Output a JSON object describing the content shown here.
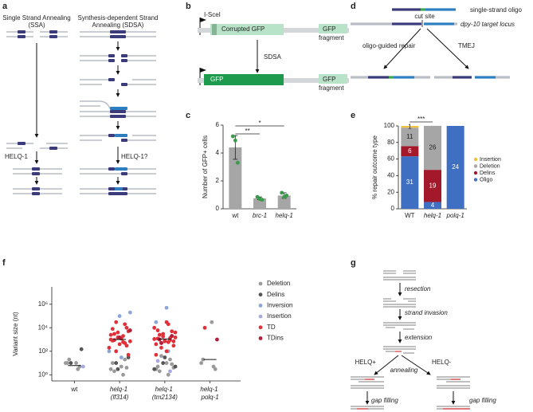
{
  "panel_a": {
    "letter": "a",
    "ssa_title": [
      "Single Strand Annealing",
      "(SSA)"
    ],
    "sdsa_title": [
      "Synthesis-dependent Strand",
      "Annealing (SDSA)"
    ],
    "ssa_step": "HELQ-1",
    "sdsa_step": "HELQ-1?"
  },
  "panel_b": {
    "letter": "b",
    "site": "I-SceI",
    "reporter": "Corrupted GFP",
    "fragment": [
      "GFP",
      "fragment"
    ],
    "arrow": "SDSA",
    "repaired": "GFP",
    "fragment_after": [
      "GFP",
      "fragment"
    ]
  },
  "panel_d": {
    "letter": "d",
    "oligo": "single-strand oligo",
    "locus": "dpy-10 target locus",
    "cut": "cut site",
    "left": "oligo-guided repair",
    "right": "TMEJ"
  },
  "panel_g": {
    "letter": "g",
    "steps": [
      "resection",
      "strand invasion",
      "extension"
    ],
    "left": "HELQ+",
    "right": "HELQ-",
    "annealing": "annealing",
    "fill_left": "gap filling",
    "fill_right": "gap filling"
  },
  "chart_data": [
    {
      "letter": "c",
      "type": "bar",
      "categories": [
        "wt",
        "brc-1",
        "helq-1"
      ],
      "values": [
        4.4,
        0.75,
        0.95
      ],
      "errors": [
        0.85,
        0.1,
        0.2
      ],
      "points": [
        [
          5.2,
          4.9,
          3.3
        ],
        [
          0.85,
          0.7,
          0.65
        ],
        [
          1.15,
          0.85,
          0.95
        ]
      ],
      "color": "#a6a6a6",
      "point_color": "#3a9a4c",
      "ylabel": "Number of GFP+ cells",
      "ylim": [
        0,
        6
      ],
      "yticks": [
        0,
        2,
        4,
        6
      ],
      "annotations": [
        "**",
        "*"
      ]
    },
    {
      "letter": "e",
      "type": "stacked_bar",
      "categories": [
        "WT",
        "helq-1",
        "polq-1"
      ],
      "series": [
        {
          "name": "Oligo",
          "color": "#3f6fc2",
          "values": [
            63.3,
            8.2,
            100
          ],
          "counts": [
            31,
            4,
            24
          ]
        },
        {
          "name": "Delins",
          "color": "#a3192b",
          "values": [
            12.2,
            38.8,
            0
          ],
          "counts": [
            6,
            19,
            null
          ]
        },
        {
          "name": "Deletion",
          "color": "#a6a6a6",
          "values": [
            22.4,
            53.1,
            0
          ],
          "counts": [
            11,
            26,
            null
          ]
        },
        {
          "name": "Insertion",
          "color": "#f2bf3a",
          "values": [
            2.0,
            0,
            0
          ],
          "counts": [
            1,
            null,
            null
          ]
        }
      ],
      "ylabel": "% repair outcome type",
      "ylim": [
        0,
        100
      ],
      "yticks": [
        0,
        20,
        40,
        60,
        80,
        100
      ],
      "annotations": [
        "***"
      ]
    },
    {
      "letter": "f",
      "type": "scatter",
      "log": true,
      "categories": [
        "wt",
        "helq-1 (lf314)",
        "helq-1 (tm2134)",
        "helq-1 polq-1"
      ],
      "ylabel": "Variant size (nt)",
      "ylim": [
        0.3,
        30000000
      ],
      "yticks": [
        {
          "value": 1,
          "label": "10⁰"
        },
        {
          "value": 100,
          "label": "10²"
        },
        {
          "value": 10000,
          "label": "10⁴"
        },
        {
          "value": 1000000,
          "label": "10⁶"
        }
      ],
      "medians": [
        6,
        1000,
        1100,
        20
      ],
      "series": [
        {
          "name": "Deletion",
          "color": "#9a9a9a",
          "x": [
            "wt",
            "wt",
            "wt",
            "wt",
            "wt",
            "wt",
            "helq-1 (lf314)",
            "helq-1 (lf314)",
            "helq-1 (lf314)",
            "helq-1 (lf314)",
            "helq-1 (lf314)",
            "helq-1 (lf314)",
            "helq-1 (lf314)",
            "helq-1 (tm2134)",
            "helq-1 (tm2134)",
            "helq-1 (tm2134)",
            "helq-1 (tm2134)",
            "helq-1 (tm2134)",
            "helq-1 (tm2134)",
            "helq-1 (tm2134)",
            "helq-1 (tm2134)",
            "helq-1 (tm2134)",
            "helq-1 polq-1",
            "helq-1 polq-1",
            "helq-1 polq-1",
            "helq-1 polq-1",
            "helq-1 polq-1"
          ],
          "values": [
            10,
            10,
            3,
            10,
            5,
            20,
            5,
            3,
            1,
            10,
            20,
            2,
            4,
            10,
            3,
            1,
            5,
            20,
            2,
            8,
            40,
            4,
            30000,
            10,
            5,
            20,
            3
          ]
        },
        {
          "name": "Delins",
          "color": "#555555",
          "x": [
            "wt",
            "wt",
            "helq-1 (lf314)",
            "helq-1 (lf314)",
            "helq-1 (lf314)",
            "helq-1 (tm2134)",
            "helq-1 (tm2134)",
            "helq-1 (tm2134)",
            "helq-1 (tm2134)"
          ],
          "values": [
            150,
            10,
            10,
            30,
            3,
            10,
            5,
            30,
            3
          ]
        },
        {
          "name": "Inversion",
          "color": "#8aa6d6",
          "x": [
            "helq-1 (lf314)",
            "helq-1 (lf314)",
            "helq-1 (lf314)",
            "helq-1 (lf314)",
            "helq-1 (tm2134)",
            "helq-1 (tm2134)",
            "helq-1 (tm2134)"
          ],
          "values": [
            200000,
            100000,
            100,
            30,
            500000,
            30000,
            100
          ]
        },
        {
          "name": "Insertion",
          "color": "#a9a9e0",
          "x": [
            "wt",
            "helq-1 (tm2134)",
            "helq-1 (tm2134)"
          ],
          "values": [
            5,
            15,
            2
          ]
        },
        {
          "name": "TD",
          "color": "#e0303a",
          "x": [
            "helq-1 (lf314)",
            "helq-1 (lf314)",
            "helq-1 (lf314)",
            "helq-1 (lf314)",
            "helq-1 (lf314)",
            "helq-1 (lf314)",
            "helq-1 (lf314)",
            "helq-1 (lf314)",
            "helq-1 (lf314)",
            "helq-1 (lf314)",
            "helq-1 (lf314)",
            "helq-1 (lf314)",
            "helq-1 (lf314)",
            "helq-1 (lf314)",
            "helq-1 (lf314)",
            "helq-1 (lf314)",
            "helq-1 (lf314)",
            "helq-1 (lf314)",
            "helq-1 (lf314)",
            "helq-1 (lf314)",
            "helq-1 (lf314)",
            "helq-1 (lf314)",
            "helq-1 (tm2134)",
            "helq-1 (tm2134)",
            "helq-1 (tm2134)",
            "helq-1 (tm2134)",
            "helq-1 (tm2134)",
            "helq-1 (tm2134)",
            "helq-1 (tm2134)",
            "helq-1 (tm2134)",
            "helq-1 (tm2134)",
            "helq-1 (tm2134)",
            "helq-1 (tm2134)",
            "helq-1 (tm2134)",
            "helq-1 (tm2134)",
            "helq-1 (tm2134)",
            "helq-1 (tm2134)",
            "helq-1 (tm2134)",
            "helq-1 (tm2134)",
            "helq-1 (tm2134)",
            "helq-1 (tm2134)",
            "helq-1 (tm2134)",
            "helq-1 (tm2134)",
            "helq-1 (tm2134)",
            "helq-1 (tm2134)",
            "helq-1 (tm2134)",
            "helq-1 (tm2134)",
            "helq-1 (tm2134)",
            "helq-1 polq-1"
          ],
          "values": [
            1000,
            2000,
            800,
            500,
            3000,
            10000,
            30000,
            5000,
            1500,
            700,
            400,
            200,
            1200,
            2500,
            600,
            8000,
            20000,
            900,
            300,
            100,
            50,
            4000,
            1000,
            2000,
            500,
            700,
            3000,
            1500,
            800,
            10000,
            30000,
            400,
            600,
            1200,
            900,
            2500,
            5000,
            200,
            300,
            1800,
            4000,
            700,
            1100,
            100,
            50,
            20000,
            6000,
            1300,
            10000
          ]
        },
        {
          "name": "TDins",
          "color": "#b0203a",
          "x": [
            "helq-1 (lf314)",
            "helq-1 (lf314)",
            "helq-1 (tm2134)",
            "helq-1 (tm2134)",
            "helq-1 (tm2134)",
            "helq-1 polq-1"
          ],
          "values": [
            6000,
            1500,
            1000,
            2000,
            500,
            1000
          ]
        }
      ]
    }
  ]
}
